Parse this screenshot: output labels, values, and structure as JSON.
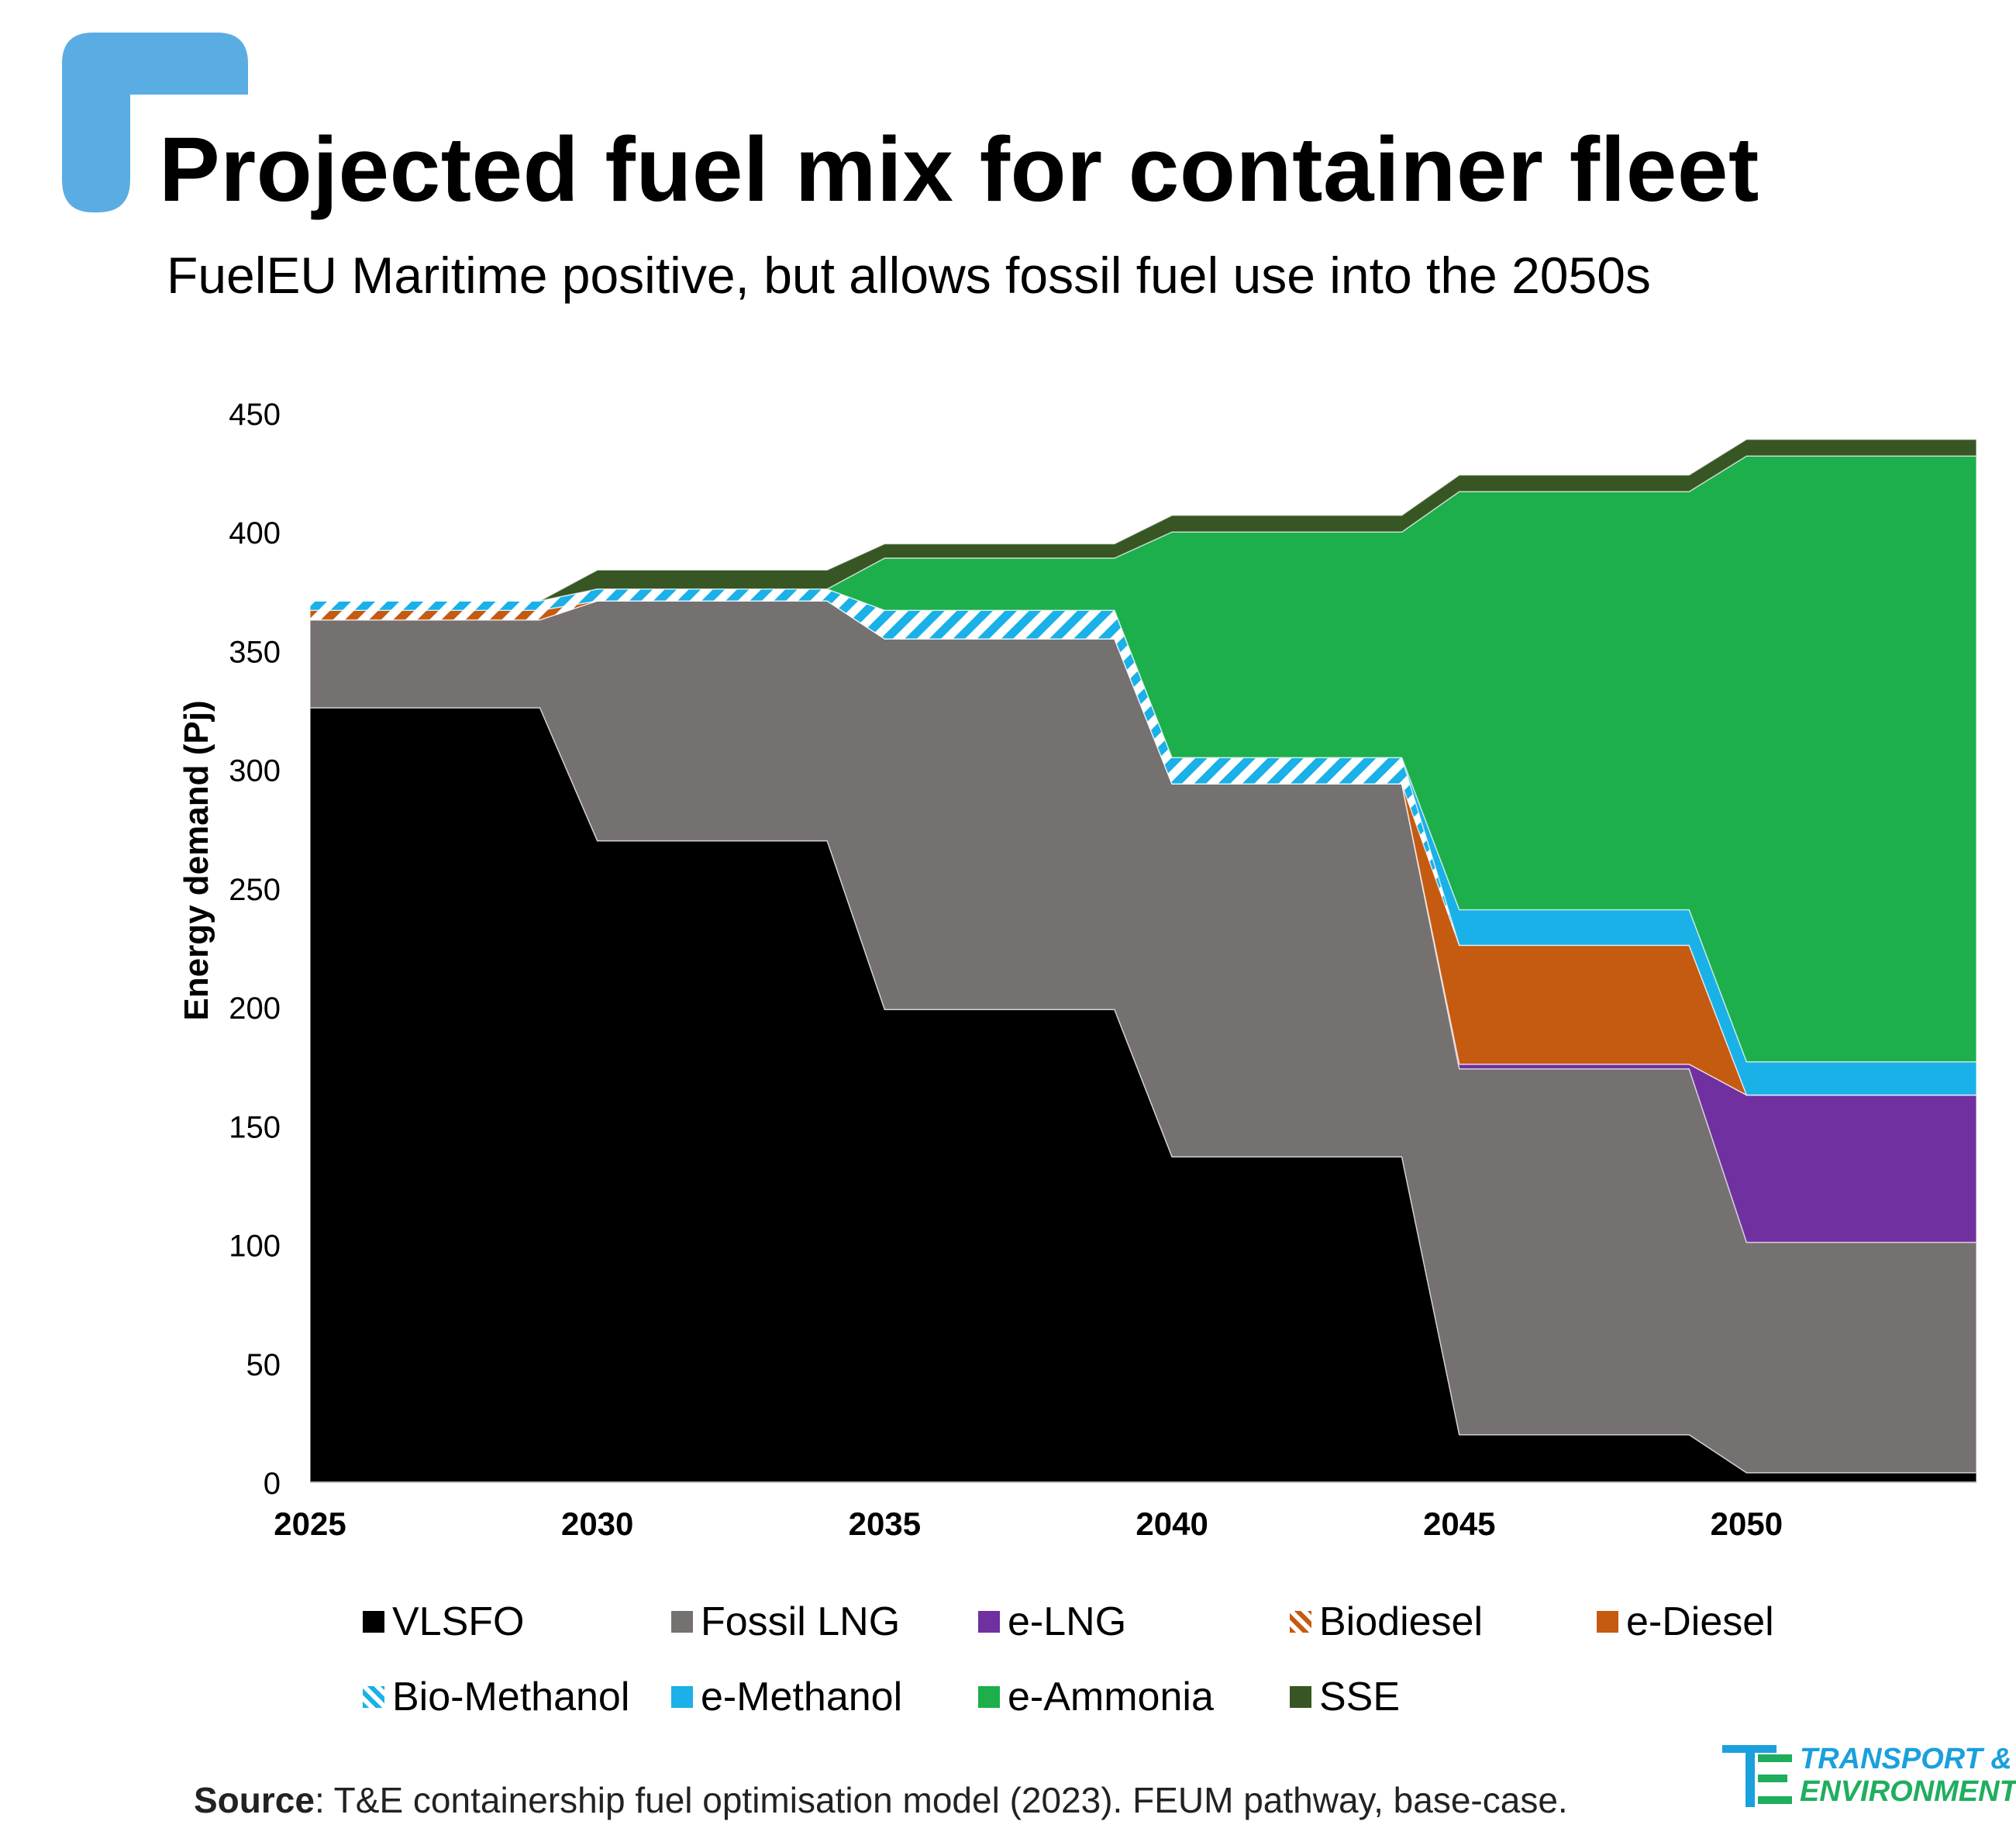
{
  "header": {
    "title": "Projected fuel mix for container fleet",
    "subtitle": "FuelEU Maritime positive, but allows fossil fuel use into the 2050s"
  },
  "source": {
    "label": "Source",
    "text": ": T&E containership fuel optimisation model (2023). FEUM pathway, base-case."
  },
  "brand": {
    "line1": "TRANSPORT &",
    "line2": "ENVIRONMENT",
    "accent": "#5aade2"
  },
  "chart_data": {
    "type": "area",
    "stacked": true,
    "ylabel": "Energy demand (Pj)",
    "xlabel": "",
    "ylim": [
      0,
      450
    ],
    "yticks": [
      0,
      50,
      100,
      150,
      200,
      250,
      300,
      350,
      400,
      450
    ],
    "xlim": [
      2025,
      2054
    ],
    "xticks": [
      2025,
      2030,
      2035,
      2040,
      2045,
      2050
    ],
    "grid": false,
    "legend_position": "bottom",
    "x": [
      2025,
      2029,
      2030,
      2034,
      2035,
      2039,
      2040,
      2044,
      2045,
      2049,
      2050,
      2054
    ],
    "series": [
      {
        "name": "VLSFO",
        "color": "#000000",
        "pattern": "solid",
        "values": [
          326,
          326,
          270,
          270,
          199,
          199,
          137,
          137,
          20,
          20,
          4,
          4
        ]
      },
      {
        "name": "Fossil LNG",
        "color": "#767171",
        "pattern": "solid",
        "values": [
          37,
          37,
          101,
          101,
          156,
          156,
          157,
          157,
          154,
          154,
          97,
          97
        ]
      },
      {
        "name": "e-LNG",
        "color": "#7030a0",
        "pattern": "solid",
        "values": [
          0,
          0,
          0,
          0,
          0,
          0,
          0,
          0,
          2,
          2,
          62,
          62
        ]
      },
      {
        "name": "Biodiesel",
        "color": "#c55a11",
        "pattern": "hatch",
        "values": [
          4,
          4,
          0,
          0,
          0,
          0,
          0,
          0,
          0,
          0,
          0,
          0
        ]
      },
      {
        "name": "e-Diesel",
        "color": "#c55a11",
        "pattern": "solid",
        "values": [
          0,
          0,
          0,
          0,
          0,
          0,
          0,
          0,
          50,
          50,
          0,
          0
        ]
      },
      {
        "name": "Bio-Methanol",
        "color": "#1ab0e8",
        "pattern": "hatch",
        "values": [
          4,
          4,
          5,
          5,
          12,
          12,
          11,
          11,
          0,
          0,
          0,
          0
        ]
      },
      {
        "name": "e-Methanol",
        "color": "#1ab0e8",
        "pattern": "solid",
        "values": [
          0,
          0,
          0,
          0,
          0,
          0,
          0,
          0,
          15,
          15,
          14,
          14
        ]
      },
      {
        "name": "e-Ammonia",
        "color": "#1caf4c",
        "pattern": "solid",
        "values": [
          0,
          0,
          0,
          0,
          22,
          22,
          95,
          95,
          176,
          176,
          255,
          255
        ]
      },
      {
        "name": "SSE",
        "color": "#375623",
        "pattern": "solid",
        "values": [
          0,
          0,
          8,
          8,
          6,
          6,
          7,
          7,
          7,
          7,
          7,
          7
        ]
      }
    ]
  }
}
